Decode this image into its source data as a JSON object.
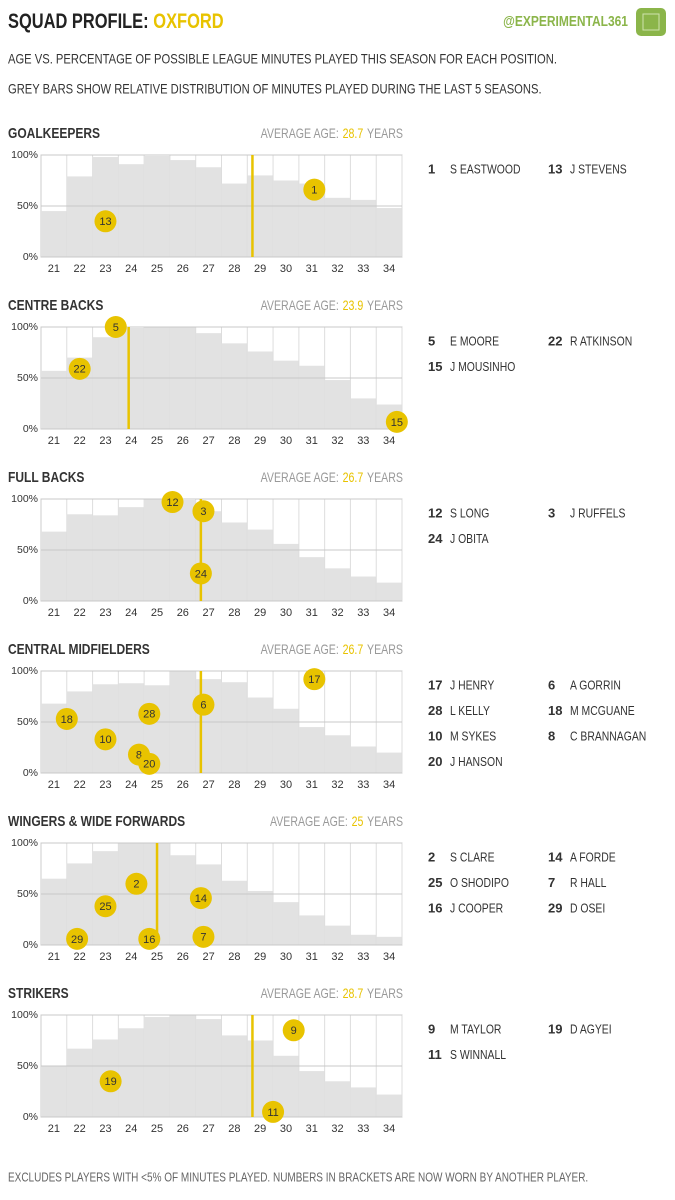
{
  "header": {
    "title": "SQUAD PROFILE:",
    "team": "OXFORD",
    "handle": "@EXPERIMENTAL361",
    "subtitle_lines": [
      "AGE VS. PERCENTAGE OF POSSIBLE LEAGUE MINUTES PLAYED THIS SEASON FOR EACH POSITION.",
      "GREY BARS SHOW RELATIVE DISTRIBUTION OF MINUTES PLAYED DURING THE LAST 5 SEASONS."
    ]
  },
  "footer": "EXCLUDES PLAYERS WITH <5% OF MINUTES PLAYED.  NUMBERS IN BRACKETS ARE NOW WORN BY ANOTHER PLAYER.",
  "chart_data": [
    {
      "type": "squad",
      "title": "GOALKEEPERS",
      "average_age_label": "AVERAGE AGE:",
      "average_age": 28.7,
      "average_age_unit": "YEARS",
      "bar_color": "#e2e2e2",
      "accent_color": "#e8c300",
      "x": [
        21,
        22,
        23,
        24,
        25,
        26,
        27,
        28,
        29,
        30,
        31,
        32,
        33,
        34
      ],
      "values": [
        45,
        79,
        98,
        91,
        99,
        95,
        88,
        72,
        80,
        75,
        72,
        58,
        56,
        48
      ],
      "xlim": [
        20.5,
        34.5
      ],
      "ylim": [
        0,
        100
      ],
      "yticks": [
        {
          "value": 0,
          "label": "0%"
        },
        {
          "value": 50,
          "label": "50%"
        },
        {
          "value": 100,
          "label": "100%"
        }
      ],
      "players": [
        {
          "number": 1,
          "name": "S EASTWOOD",
          "age": 31.1,
          "minutes": 66
        },
        {
          "number": 13,
          "name": "J STEVENS",
          "age": 23.0,
          "minutes": 35
        }
      ]
    },
    {
      "type": "squad",
      "title": "CENTRE BACKS",
      "average_age_label": "AVERAGE AGE:",
      "average_age": 23.9,
      "average_age_unit": "YEARS",
      "bar_color": "#e2e2e2",
      "accent_color": "#e8c300",
      "x": [
        21,
        22,
        23,
        24,
        25,
        26,
        27,
        28,
        29,
        30,
        31,
        32,
        33,
        34
      ],
      "values": [
        57,
        70,
        90,
        99,
        100,
        100,
        94,
        84,
        76,
        67,
        62,
        48,
        30,
        24
      ],
      "xlim": [
        20.5,
        34.5
      ],
      "ylim": [
        0,
        100
      ],
      "yticks": [
        {
          "value": 0,
          "label": "0%"
        },
        {
          "value": 50,
          "label": "50%"
        },
        {
          "value": 100,
          "label": "100%"
        }
      ],
      "players": [
        {
          "number": 5,
          "name": "E MOORE",
          "age": 23.4,
          "minutes": 100
        },
        {
          "number": 22,
          "name": "R ATKINSON",
          "age": 22.0,
          "minutes": 59
        },
        {
          "number": 15,
          "name": "J MOUSINHO",
          "age": 34.3,
          "minutes": 7
        }
      ]
    },
    {
      "type": "squad",
      "title": "FULL BACKS",
      "average_age_label": "AVERAGE AGE:",
      "average_age": 26.7,
      "average_age_unit": "YEARS",
      "bar_color": "#e2e2e2",
      "accent_color": "#e8c300",
      "x": [
        21,
        22,
        23,
        24,
        25,
        26,
        27,
        28,
        29,
        30,
        31,
        32,
        33,
        34
      ],
      "values": [
        68,
        85,
        84,
        92,
        100,
        99,
        88,
        77,
        70,
        56,
        43,
        32,
        24,
        18
      ],
      "xlim": [
        20.5,
        34.5
      ],
      "ylim": [
        0,
        100
      ],
      "yticks": [
        {
          "value": 0,
          "label": "0%"
        },
        {
          "value": 50,
          "label": "50%"
        },
        {
          "value": 100,
          "label": "100%"
        }
      ],
      "players": [
        {
          "number": 12,
          "name": "S LONG",
          "age": 25.6,
          "minutes": 97
        },
        {
          "number": 3,
          "name": "J RUFFELS",
          "age": 26.8,
          "minutes": 88
        },
        {
          "number": 24,
          "name": "J OBITA",
          "age": 26.7,
          "minutes": 27
        }
      ]
    },
    {
      "type": "squad",
      "title": "CENTRAL MIDFIELDERS",
      "average_age_label": "AVERAGE AGE:",
      "average_age": 26.7,
      "average_age_unit": "YEARS",
      "bar_color": "#e2e2e2",
      "accent_color": "#e8c300",
      "x": [
        21,
        22,
        23,
        24,
        25,
        26,
        27,
        28,
        29,
        30,
        31,
        32,
        33,
        34
      ],
      "values": [
        68,
        80,
        87,
        88,
        86,
        100,
        92,
        89,
        74,
        63,
        45,
        37,
        26,
        20
      ],
      "xlim": [
        20.5,
        34.5
      ],
      "ylim": [
        0,
        100
      ],
      "yticks": [
        {
          "value": 0,
          "label": "0%"
        },
        {
          "value": 50,
          "label": "50%"
        },
        {
          "value": 100,
          "label": "100%"
        }
      ],
      "players": [
        {
          "number": 17,
          "name": "J HENRY",
          "age": 31.1,
          "minutes": 92
        },
        {
          "number": 6,
          "name": "A GORRIN",
          "age": 26.8,
          "minutes": 67
        },
        {
          "number": 28,
          "name": "L KELLY",
          "age": 24.7,
          "minutes": 58
        },
        {
          "number": 18,
          "name": "M MCGUANE",
          "age": 21.5,
          "minutes": 53
        },
        {
          "number": 10,
          "name": "M SYKES",
          "age": 23.0,
          "minutes": 33
        },
        {
          "number": 8,
          "name": "C BRANNAGAN",
          "age": 24.3,
          "minutes": 18
        },
        {
          "number": 20,
          "name": "J HANSON",
          "age": 24.7,
          "minutes": 9
        }
      ]
    },
    {
      "type": "squad",
      "title": "WINGERS & WIDE FORWARDS",
      "average_age_label": "AVERAGE AGE:",
      "average_age": 25.0,
      "average_age_unit": "YEARS",
      "bar_color": "#e2e2e2",
      "accent_color": "#e8c300",
      "x": [
        21,
        22,
        23,
        24,
        25,
        26,
        27,
        28,
        29,
        30,
        31,
        32,
        33,
        34
      ],
      "values": [
        65,
        80,
        92,
        100,
        100,
        88,
        79,
        63,
        53,
        42,
        29,
        19,
        10,
        8
      ],
      "xlim": [
        20.5,
        34.5
      ],
      "ylim": [
        0,
        100
      ],
      "yticks": [
        {
          "value": 0,
          "label": "0%"
        },
        {
          "value": 50,
          "label": "50%"
        },
        {
          "value": 100,
          "label": "100%"
        }
      ],
      "players": [
        {
          "number": 2,
          "name": "S CLARE",
          "age": 24.2,
          "minutes": 60
        },
        {
          "number": 14,
          "name": "A FORDE",
          "age": 26.7,
          "minutes": 46
        },
        {
          "number": 25,
          "name": "O SHODIPO",
          "age": 23.0,
          "minutes": 38
        },
        {
          "number": 7,
          "name": "R HALL",
          "age": 26.8,
          "minutes": 8
        },
        {
          "number": 16,
          "name": "J COOPER",
          "age": 24.7,
          "minutes": 6
        },
        {
          "number": 29,
          "name": "D OSEI",
          "age": 21.9,
          "minutes": 6
        }
      ]
    },
    {
      "type": "squad",
      "title": "STRIKERS",
      "average_age_label": "AVERAGE AGE:",
      "average_age": 28.7,
      "average_age_unit": "YEARS",
      "bar_color": "#e2e2e2",
      "accent_color": "#e8c300",
      "x": [
        21,
        22,
        23,
        24,
        25,
        26,
        27,
        28,
        29,
        30,
        31,
        32,
        33,
        34
      ],
      "values": [
        50,
        67,
        76,
        87,
        98,
        100,
        96,
        80,
        75,
        60,
        45,
        35,
        29,
        22
      ],
      "xlim": [
        20.5,
        34.5
      ],
      "ylim": [
        0,
        100
      ],
      "yticks": [
        {
          "value": 0,
          "label": "0%"
        },
        {
          "value": 50,
          "label": "50%"
        },
        {
          "value": 100,
          "label": "100%"
        }
      ],
      "players": [
        {
          "number": 9,
          "name": "M TAYLOR",
          "age": 30.3,
          "minutes": 85
        },
        {
          "number": 19,
          "name": "D AGYEI",
          "age": 23.2,
          "minutes": 35
        },
        {
          "number": 11,
          "name": "S WINNALL",
          "age": 29.5,
          "minutes": 5
        }
      ]
    }
  ]
}
